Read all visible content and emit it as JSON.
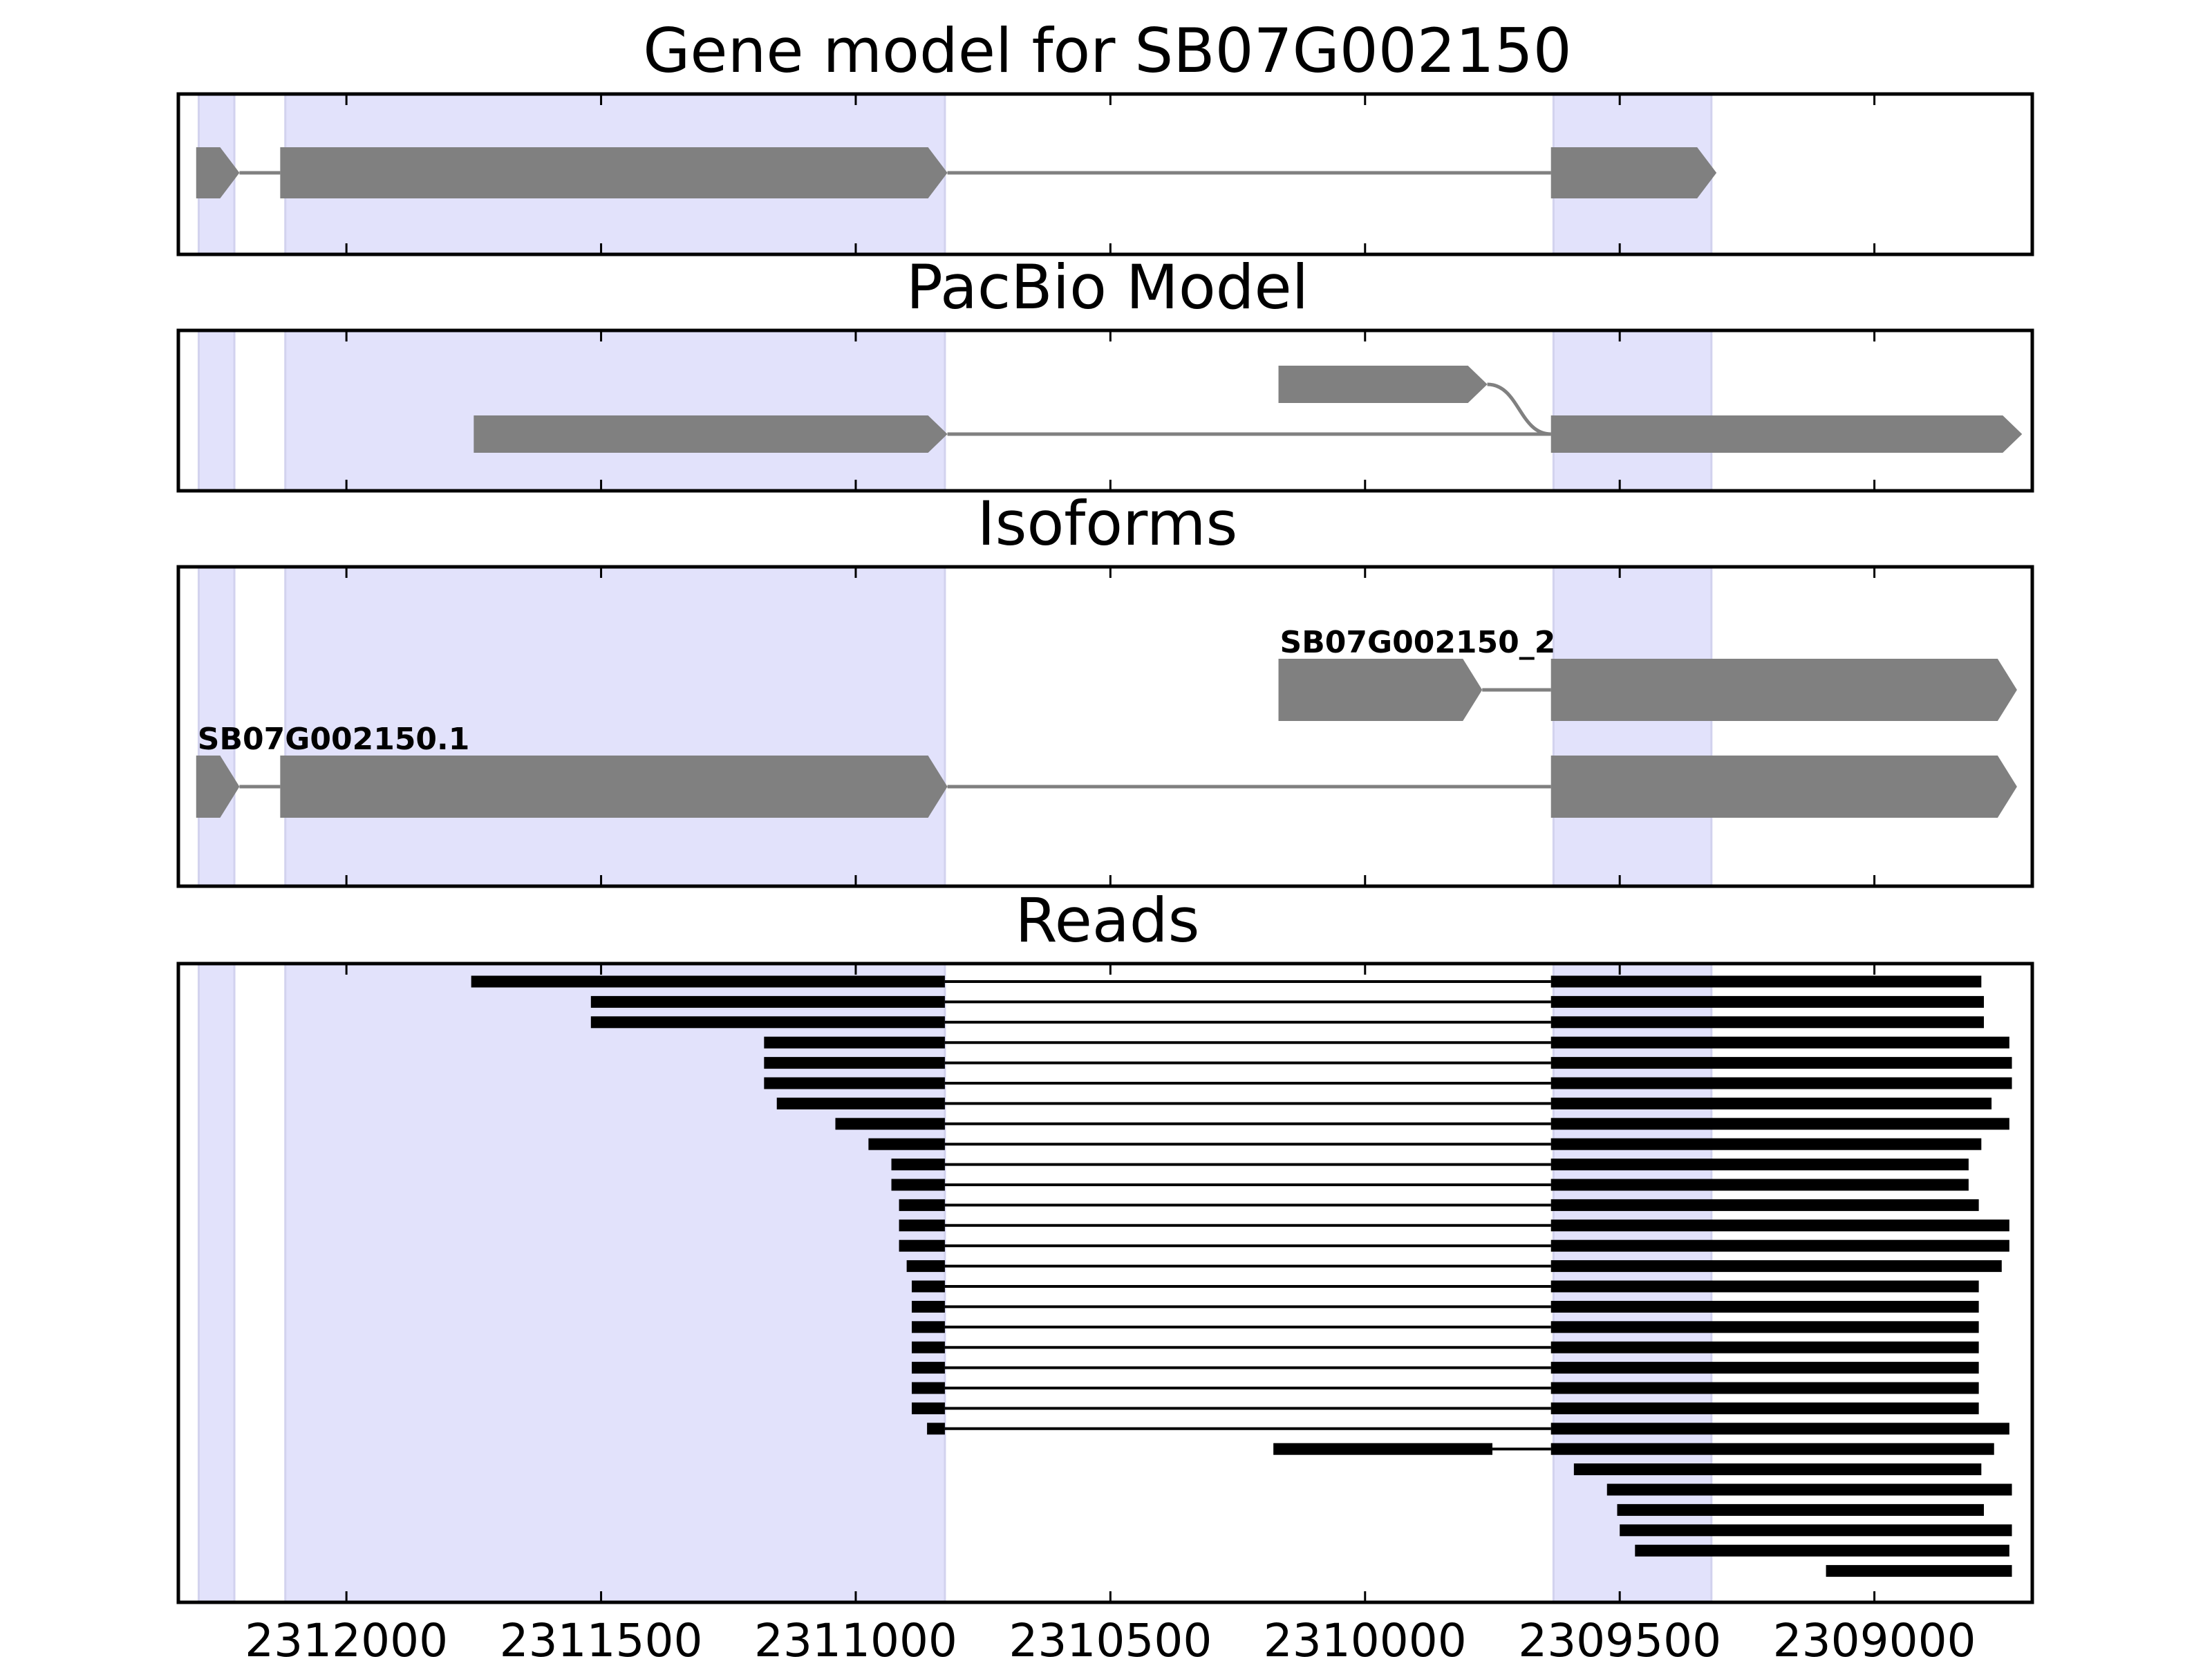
{
  "figure": {
    "title_gene_model": "Gene model for SB07G002150",
    "title_pacbio": "PacBio Model",
    "title_isoforms": "Isoforms",
    "title_reads": "Reads"
  },
  "colors": {
    "highlight": "#e2e2fb",
    "highlight_edge": "#d2d2ee",
    "feature": "#808080",
    "intron": "#808080",
    "read": "#000000",
    "frame": "#000000"
  },
  "axis": {
    "direction": "reversed",
    "xlim": [
      2312330,
      2308690
    ],
    "ticks": [
      2312000,
      2311500,
      2311000,
      2310500,
      2310000,
      2309500,
      2309000
    ],
    "tick_labels": [
      "2312000",
      "2311500",
      "2311000",
      "2310500",
      "2310000",
      "2309500",
      "2309000"
    ]
  },
  "highlights": [
    [
      2312290,
      2312220
    ],
    [
      2312120,
      2310825
    ],
    [
      2309630,
      2309320
    ]
  ],
  "gene_model": {
    "exons": [
      [
        2312295,
        2312210
      ],
      [
        2312130,
        2310820
      ],
      [
        2309635,
        2309310
      ]
    ],
    "strand": "-"
  },
  "pacbio_model": {
    "transcripts": [
      {
        "exons": [
          [
            2311750,
            2310820
          ],
          [
            2309635,
            2308710
          ]
        ]
      },
      {
        "exons": [
          [
            2310170,
            2309760
          ]
        ],
        "joins_lower": true
      }
    ]
  },
  "isoforms": [
    {
      "label": "SB07G002150.1",
      "exons": [
        [
          2312295,
          2312210
        ],
        [
          2312130,
          2310820
        ],
        [
          2309635,
          2308720
        ]
      ]
    },
    {
      "label": "SB07G002150_2",
      "exons": [
        [
          2310170,
          2309770
        ],
        [
          2309635,
          2308720
        ]
      ]
    }
  ],
  "reads": [
    {
      "exons": [
        [
          2311755,
          2310825
        ],
        [
          2309635,
          2308790
        ]
      ]
    },
    {
      "exons": [
        [
          2311520,
          2310825
        ],
        [
          2309635,
          2308785
        ]
      ]
    },
    {
      "exons": [
        [
          2311520,
          2310825
        ],
        [
          2309635,
          2308785
        ]
      ]
    },
    {
      "exons": [
        [
          2311180,
          2310825
        ],
        [
          2309635,
          2308735
        ]
      ]
    },
    {
      "exons": [
        [
          2311180,
          2310825
        ],
        [
          2309635,
          2308730
        ]
      ]
    },
    {
      "exons": [
        [
          2311180,
          2310825
        ],
        [
          2309635,
          2308730
        ]
      ]
    },
    {
      "exons": [
        [
          2311155,
          2310825
        ],
        [
          2309635,
          2308770
        ]
      ]
    },
    {
      "exons": [
        [
          2311040,
          2310825
        ],
        [
          2309635,
          2308735
        ]
      ]
    },
    {
      "exons": [
        [
          2310975,
          2310825
        ],
        [
          2309635,
          2308790
        ]
      ]
    },
    {
      "exons": [
        [
          2310930,
          2310825
        ],
        [
          2309635,
          2308815
        ]
      ]
    },
    {
      "exons": [
        [
          2310930,
          2310825
        ],
        [
          2309635,
          2308815
        ]
      ]
    },
    {
      "exons": [
        [
          2310915,
          2310825
        ],
        [
          2309635,
          2308795
        ]
      ]
    },
    {
      "exons": [
        [
          2310915,
          2310825
        ],
        [
          2309635,
          2308735
        ]
      ]
    },
    {
      "exons": [
        [
          2310915,
          2310825
        ],
        [
          2309635,
          2308735
        ]
      ]
    },
    {
      "exons": [
        [
          2310900,
          2310825
        ],
        [
          2309635,
          2308750
        ]
      ]
    },
    {
      "exons": [
        [
          2310890,
          2310825
        ],
        [
          2309635,
          2308795
        ]
      ]
    },
    {
      "exons": [
        [
          2310890,
          2310825
        ],
        [
          2309635,
          2308795
        ]
      ]
    },
    {
      "exons": [
        [
          2310890,
          2310825
        ],
        [
          2309635,
          2308795
        ]
      ]
    },
    {
      "exons": [
        [
          2310890,
          2310825
        ],
        [
          2309635,
          2308795
        ]
      ]
    },
    {
      "exons": [
        [
          2310890,
          2310825
        ],
        [
          2309635,
          2308795
        ]
      ]
    },
    {
      "exons": [
        [
          2310890,
          2310825
        ],
        [
          2309635,
          2308795
        ]
      ]
    },
    {
      "exons": [
        [
          2310890,
          2310825
        ],
        [
          2309635,
          2308795
        ]
      ]
    },
    {
      "exons": [
        [
          2310860,
          2310825
        ],
        [
          2309635,
          2308735
        ]
      ]
    },
    {
      "exons": [
        [
          2310180,
          2309750
        ],
        [
          2309635,
          2308765
        ]
      ]
    },
    {
      "exons": [
        [
          2309590,
          2308790
        ]
      ]
    },
    {
      "exons": [
        [
          2309525,
          2308730
        ]
      ]
    },
    {
      "exons": [
        [
          2309505,
          2308785
        ]
      ]
    },
    {
      "exons": [
        [
          2309500,
          2308730
        ]
      ]
    },
    {
      "exons": [
        [
          2309470,
          2308735
        ]
      ]
    },
    {
      "exons": [
        [
          2309095,
          2308730
        ]
      ]
    }
  ]
}
